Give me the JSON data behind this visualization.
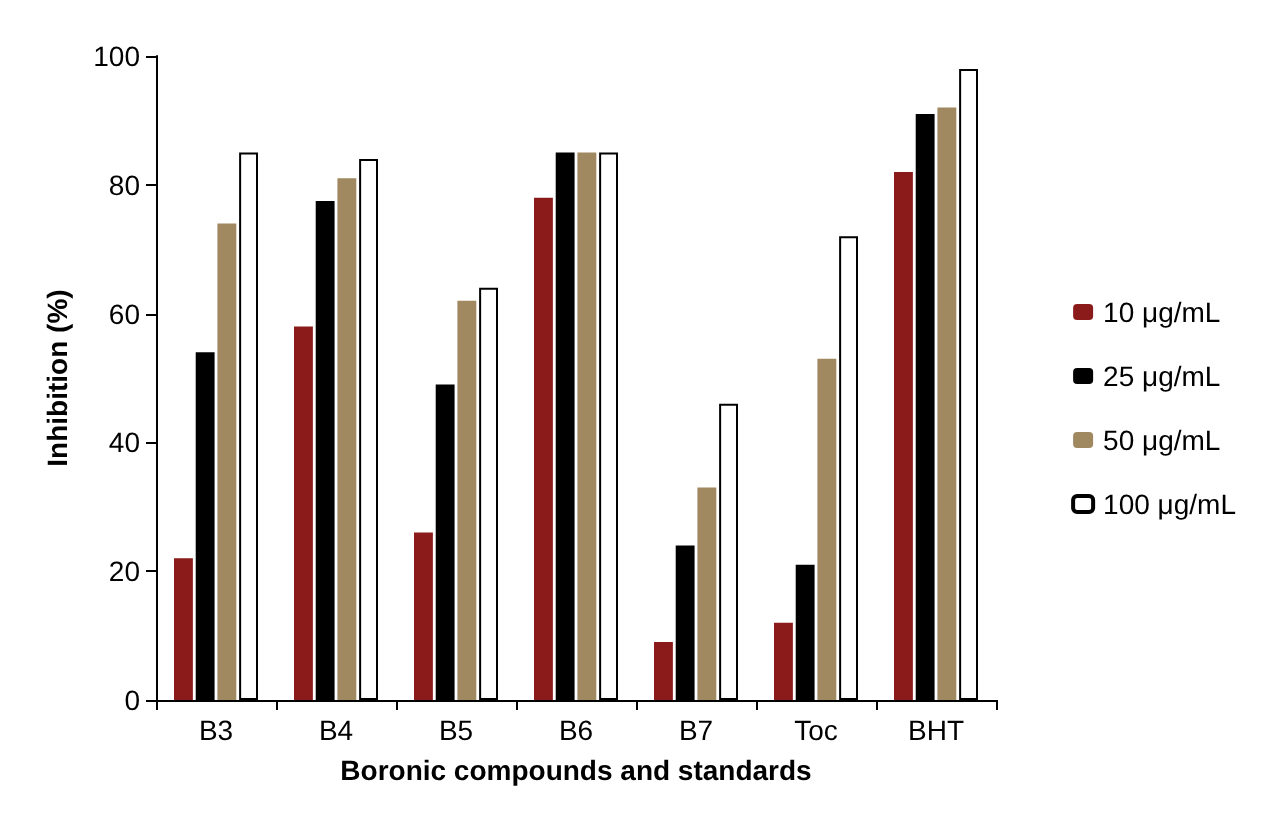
{
  "chart_data": {
    "type": "bar",
    "xlabel": "Boronic compounds and standards",
    "ylabel": "Inhibition (%)",
    "categories": [
      "B3",
      "B4",
      "B5",
      "B6",
      "B7",
      "Toc",
      "BHT"
    ],
    "series": [
      {
        "name": "10 μg/mL",
        "color": "#8b1a1a",
        "values": [
          22,
          58,
          26,
          78,
          9,
          12,
          82
        ]
      },
      {
        "name": "25 μg/mL",
        "color": "#000000",
        "values": [
          54,
          77.5,
          49,
          85,
          24,
          21,
          91
        ]
      },
      {
        "name": "50 μg/mL",
        "color": "#a08860",
        "values": [
          74,
          81,
          62,
          85,
          33,
          53,
          92
        ]
      },
      {
        "name": "100 μg/mL",
        "color": "#ffffff",
        "values": [
          85,
          84,
          64,
          85,
          46,
          72,
          98
        ]
      }
    ],
    "ylim": [
      0,
      100
    ],
    "yticks": [
      0,
      20,
      40,
      60,
      80,
      100
    ],
    "grid": false,
    "legend": "right"
  }
}
